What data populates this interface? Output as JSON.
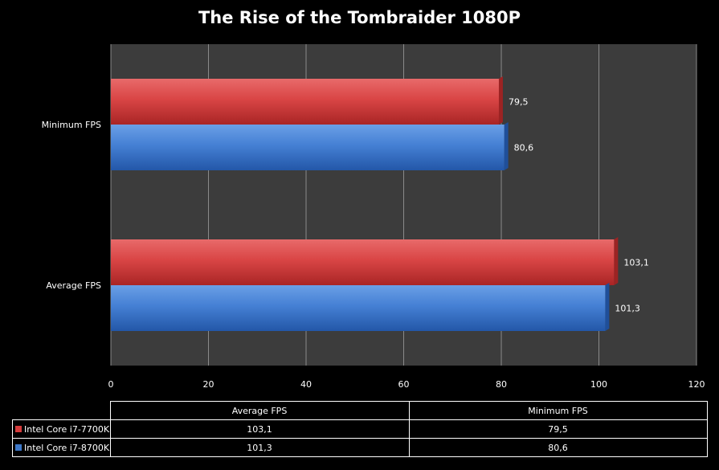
{
  "chart_data": {
    "type": "bar",
    "orientation": "horizontal",
    "title": "The Rise of the Tombraider 1080P",
    "categories": [
      "Minimum FPS",
      "Average FPS"
    ],
    "series": [
      {
        "name": "Intel Core i7-7700K",
        "color": "#d63c3c",
        "values": [
          79.5,
          103.1
        ],
        "labels": [
          "79,5",
          "103,1"
        ]
      },
      {
        "name": "Intel Core i7-8700K",
        "color": "#3d78c8",
        "values": [
          80.6,
          101.3
        ],
        "labels": [
          "80,6",
          "101,3"
        ]
      }
    ],
    "xlim": [
      0,
      120
    ],
    "xticks": [
      0,
      20,
      40,
      60,
      80,
      100,
      120
    ],
    "grid": true,
    "plot_background": "#3c3c3c",
    "data_table": {
      "columns": [
        "Average FPS",
        "Minimum FPS"
      ],
      "rows": [
        {
          "series": "Intel Core i7-7700K",
          "cells": [
            "103,1",
            "79,5"
          ]
        },
        {
          "series": "Intel Core i7-8700K",
          "cells": [
            "101,3",
            "80,6"
          ]
        }
      ]
    }
  }
}
